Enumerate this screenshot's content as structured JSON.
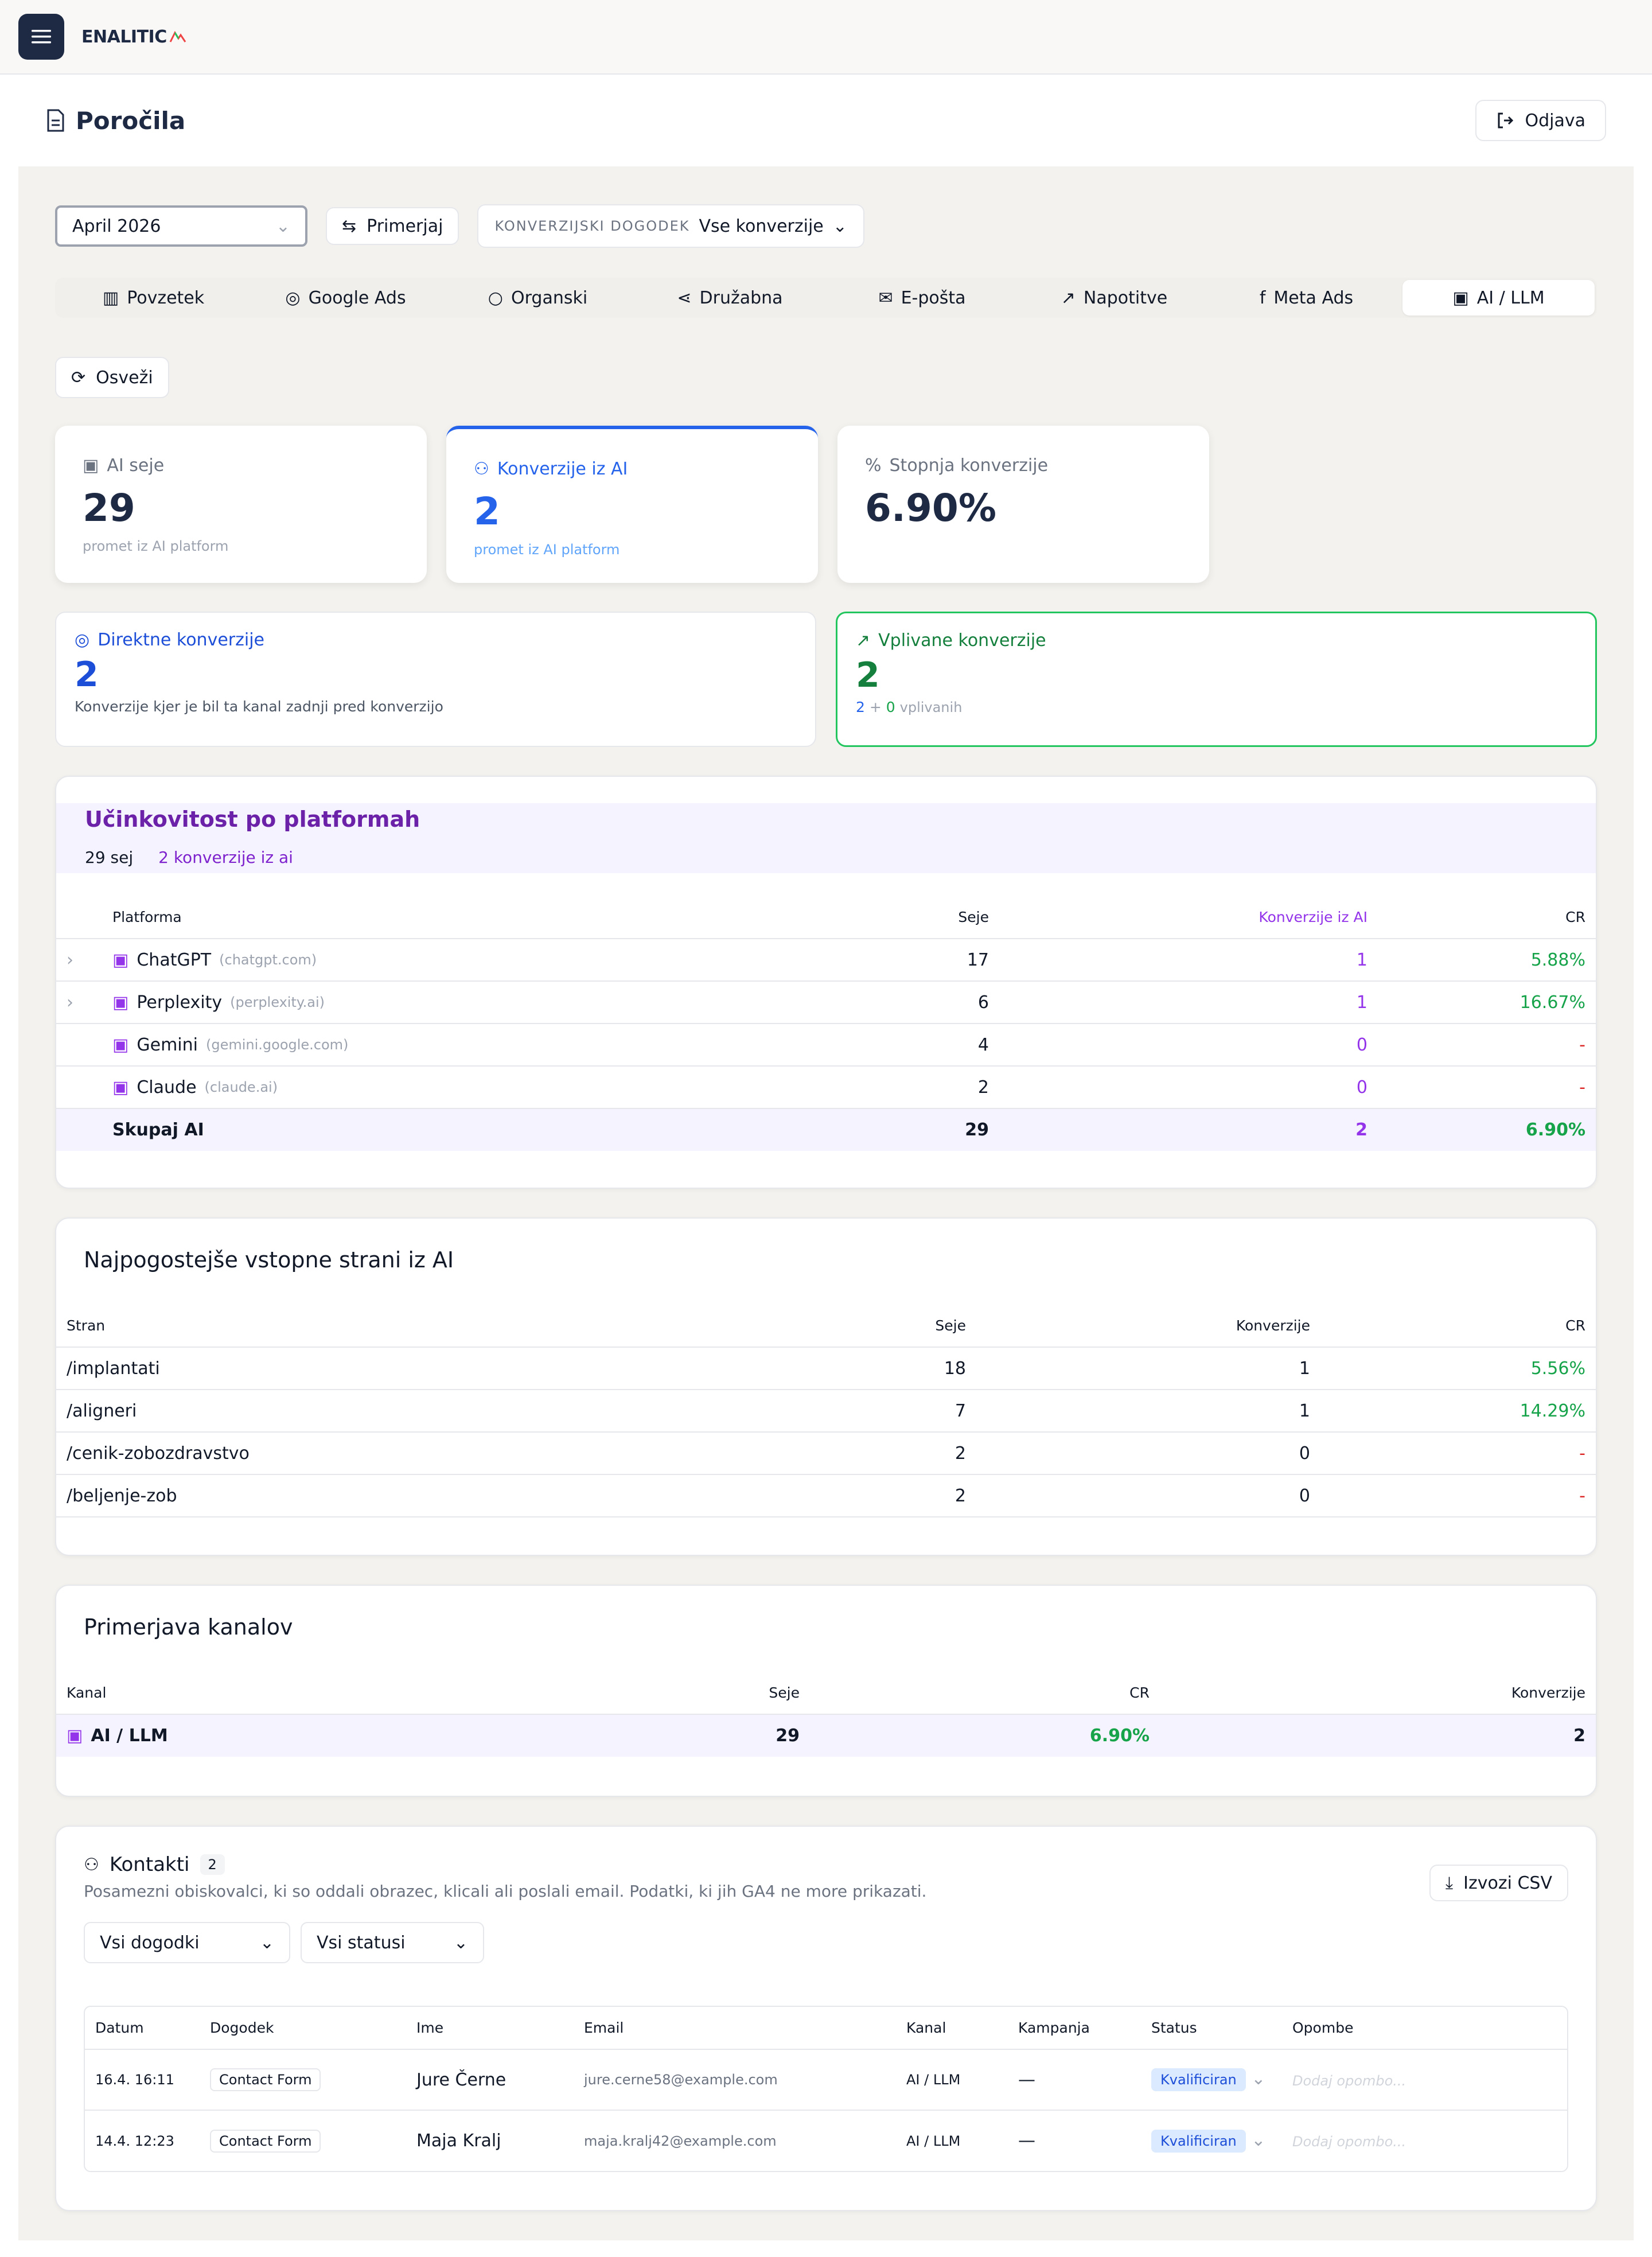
{
  "header": {
    "logo": "ENALITIC"
  },
  "page": {
    "title": "Poročila",
    "logout": "Odjava"
  },
  "filters": {
    "month": "April 2026",
    "apply": "Primerjaj",
    "conv_label": "KONVERZIJSKI DOGODEK",
    "conv_value": "Vse konverzije"
  },
  "tabs": [
    {
      "label": "Povzetek",
      "icon": "bar-chart-icon"
    },
    {
      "label": "Google Ads",
      "icon": "target-icon"
    },
    {
      "label": "Organski",
      "icon": "search-icon"
    },
    {
      "label": "Družabna",
      "icon": "share-icon"
    },
    {
      "label": "E-pošta",
      "icon": "mail-icon"
    },
    {
      "label": "Napotitve",
      "icon": "external-link-icon"
    },
    {
      "label": "Meta Ads",
      "icon": "facebook-icon"
    },
    {
      "label": "AI / LLM",
      "icon": "bot-icon"
    }
  ],
  "refresh": "Osveži",
  "kpis": {
    "sessions": {
      "label": "AI seje",
      "value": "29",
      "sub": "promet iz AI platform"
    },
    "conversions": {
      "label": "Konverzije iz AI",
      "value": "2",
      "sub": "promet iz AI platform"
    },
    "rate": {
      "label": "Stopnja konverzije",
      "value": "6.90%"
    }
  },
  "direct": {
    "label": "Direktne konverzije",
    "value": "2",
    "sub": "Konverzije kjer je bil ta kanal zadnji pred konverzijo"
  },
  "assisted": {
    "label": "Vplivane konverzije",
    "value": "2",
    "a": "2",
    "plus": "+",
    "b": "0",
    "sub": "vplivanih"
  },
  "platforms": {
    "title": "Učinkovitost po platformah",
    "summary_sessions": "29 sej",
    "summary_conv": "2 konverzije iz ai",
    "headers": [
      "Platforma",
      "Seje",
      "Konverzije iz AI",
      "CR"
    ],
    "rows": [
      {
        "name": "ChatGPT",
        "domain": "(chatgpt.com)",
        "seje": "17",
        "konv": "1",
        "cr": "5.88%"
      },
      {
        "name": "Perplexity",
        "domain": "(perplexity.ai)",
        "seje": "6",
        "konv": "1",
        "cr": "16.67%"
      },
      {
        "name": "Gemini",
        "domain": "(gemini.google.com)",
        "seje": "4",
        "konv": "0",
        "cr": "-"
      },
      {
        "name": "Claude",
        "domain": "(claude.ai)",
        "seje": "2",
        "konv": "0",
        "cr": "-"
      }
    ],
    "total": {
      "name": "Skupaj AI",
      "seje": "29",
      "konv": "2",
      "cr": "6.90%"
    }
  },
  "pages": {
    "title": "Najpogostejše vstopne strani iz AI",
    "headers": [
      "Stran",
      "Seje",
      "Konverzije",
      "CR"
    ],
    "rows": [
      {
        "path": "/implantati",
        "seje": "18",
        "konv": "1",
        "cr": "5.56%"
      },
      {
        "path": "/aligneri",
        "seje": "7",
        "konv": "1",
        "cr": "14.29%"
      },
      {
        "path": "/cenik-zobozdravstvo",
        "seje": "2",
        "konv": "0",
        "cr": "-"
      },
      {
        "path": "/beljenje-zob",
        "seje": "2",
        "konv": "0",
        "cr": "-"
      }
    ]
  },
  "channels": {
    "title": "Primerjava kanalov",
    "headers": [
      "Kanal",
      "Seje",
      "CR",
      "Konverzije"
    ],
    "row": {
      "name": "AI / LLM",
      "seje": "29",
      "cr": "6.90%",
      "konv": "2"
    }
  },
  "contacts": {
    "title": "Kontakti",
    "count": "2",
    "desc": "Posamezni obiskovalci, ki so oddali obrazec, klicali ali poslali email. Podatki, ki jih GA4 ne more prikazati.",
    "export": "Izvozi CSV",
    "filter_events": "Vsi dogodki",
    "filter_status": "Vsi statusi",
    "headers": [
      "Datum",
      "Dogodek",
      "Ime",
      "Email",
      "Kanal",
      "Kampanja",
      "Status",
      "Opombe"
    ],
    "rows": [
      {
        "date": "16.4. 16:11",
        "event": "Contact Form",
        "name": "Jure Černe",
        "email": "jure.cerne58@example.com",
        "channel": "AI / LLM",
        "campaign": "—",
        "status": "Kvalificiran",
        "note": "Dodaj opombo..."
      },
      {
        "date": "14.4. 12:23",
        "event": "Contact Form",
        "name": "Maja Kralj",
        "email": "maja.kralj42@example.com",
        "channel": "AI / LLM",
        "campaign": "—",
        "status": "Kvalificiran",
        "note": "Dodaj opombo..."
      }
    ]
  }
}
